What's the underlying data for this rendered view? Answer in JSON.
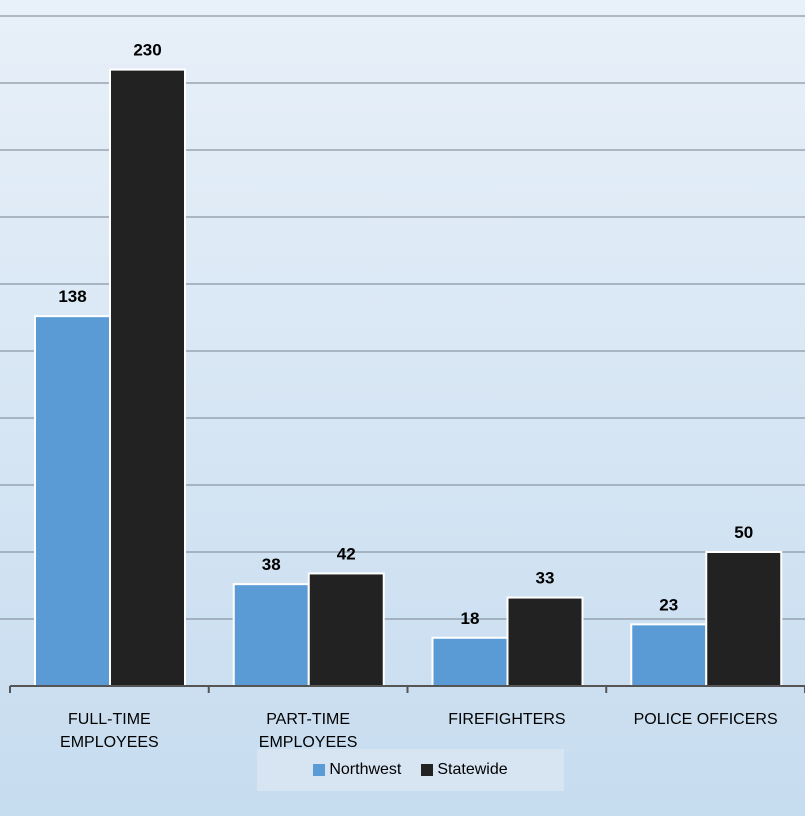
{
  "chart_data": {
    "type": "bar",
    "title": "",
    "xlabel": "",
    "ylabel": "",
    "ylim": [
      0,
      250
    ],
    "grid": true,
    "legend_position": "bottom",
    "categories": [
      [
        "FULL-TIME",
        "EMPLOYEES"
      ],
      [
        "PART-TIME",
        "EMPLOYEES"
      ],
      [
        "FIREFIGHTERS"
      ],
      [
        "POLICE OFFICERS"
      ]
    ],
    "series": [
      {
        "name": "Northwest",
        "values": [
          138,
          38,
          18,
          23
        ],
        "color": "#5b9bd5"
      },
      {
        "name": "Statewide",
        "values": [
          230,
          42,
          33,
          50
        ],
        "color": "#222222"
      }
    ]
  }
}
